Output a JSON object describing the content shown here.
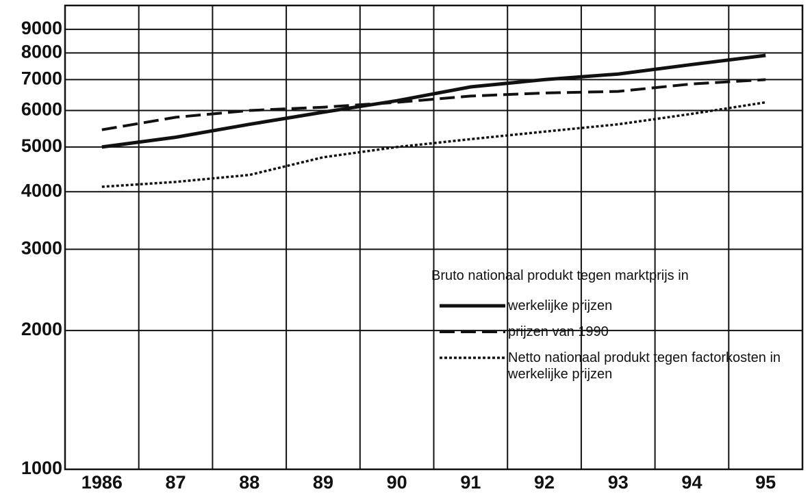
{
  "chart_data": {
    "type": "line",
    "legend_title": "Bruto nationaal produkt tegen marktprijs in",
    "categories": [
      "1986",
      "87",
      "88",
      "89",
      "90",
      "91",
      "92",
      "93",
      "94",
      "95"
    ],
    "series": [
      {
        "name": "werkelijke prijzen",
        "color": "#111111",
        "style": "solid",
        "values": [
          5000,
          5250,
          5600,
          5950,
          6300,
          6750,
          7000,
          7200,
          7550,
          7900
        ]
      },
      {
        "name": "prijzen van 1990",
        "color": "#111111",
        "style": "dashed",
        "values": [
          5450,
          5800,
          6000,
          6100,
          6250,
          6450,
          6550,
          6600,
          6850,
          7000
        ]
      },
      {
        "name": "Netto nationaal produkt tegen factorkosten in werkelijke prijzen",
        "color": "#111111",
        "style": "dotted",
        "values": [
          4100,
          4200,
          4350,
          4750,
          5000,
          5200,
          5400,
          5600,
          5900,
          6250
        ]
      }
    ],
    "ylim": [
      1000,
      10000
    ],
    "log_scale": true,
    "yticks": [
      1000,
      2000,
      3000,
      4000,
      5000,
      6000,
      7000,
      8000,
      9000
    ],
    "grid": true
  }
}
